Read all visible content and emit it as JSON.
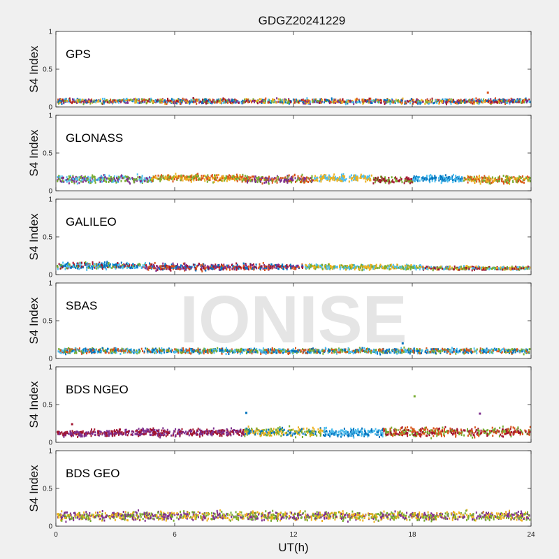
{
  "chart_data": {
    "type": "scatter",
    "title": "GDGZ20241229",
    "xlabel": "UT(h)",
    "ylabel": "S4 Index",
    "xlim": [
      0,
      24
    ],
    "ylim": [
      0,
      1
    ],
    "x_ticks": [
      "0",
      "6",
      "12",
      "18",
      "24"
    ],
    "y_ticks": [
      "0",
      "0.5",
      "1"
    ],
    "grid": false,
    "legend": "none",
    "watermark": "IONISE",
    "series_colors": [
      "#0072BD",
      "#D95319",
      "#EDB120",
      "#7E2F8E",
      "#77AC30",
      "#4DBEEE",
      "#A2142F"
    ],
    "panels": [
      {
        "label": "GPS",
        "segments": [
          {
            "x0": 0,
            "x1": 24,
            "s4_min": 0.03,
            "s4_max": 0.12,
            "colors": [
              "#D95319",
              "#0072BD",
              "#77AC30",
              "#7E2F8E",
              "#4DBEEE",
              "#A2142F",
              "#EDB120"
            ]
          }
        ],
        "outliers": [
          {
            "x": 21.8,
            "s4": 0.19,
            "color": "#D95319"
          }
        ]
      },
      {
        "label": "GLONASS",
        "segments": [
          {
            "x0": 0,
            "x1": 4.8,
            "s4_min": 0.08,
            "s4_max": 0.22,
            "colors": [
              "#77AC30",
              "#4DBEEE",
              "#7E2F8E"
            ]
          },
          {
            "x0": 4.8,
            "x1": 9.5,
            "s4_min": 0.1,
            "s4_max": 0.24,
            "colors": [
              "#EDB120",
              "#D95319",
              "#77AC30"
            ]
          },
          {
            "x0": 9.5,
            "x1": 13,
            "s4_min": 0.08,
            "s4_max": 0.22,
            "colors": [
              "#77AC30",
              "#7E2F8E",
              "#D95319"
            ]
          },
          {
            "x0": 13,
            "x1": 16,
            "s4_min": 0.1,
            "s4_max": 0.24,
            "colors": [
              "#4DBEEE",
              "#EDB120"
            ]
          },
          {
            "x0": 16,
            "x1": 18,
            "s4_min": 0.08,
            "s4_max": 0.2,
            "colors": [
              "#A2142F",
              "#77AC30"
            ]
          },
          {
            "x0": 18,
            "x1": 20.5,
            "s4_min": 0.1,
            "s4_max": 0.22,
            "colors": [
              "#0072BD",
              "#4DBEEE"
            ]
          },
          {
            "x0": 20.5,
            "x1": 24,
            "s4_min": 0.08,
            "s4_max": 0.22,
            "colors": [
              "#D95319",
              "#EDB120",
              "#77AC30"
            ]
          }
        ],
        "outliers": []
      },
      {
        "label": "GALILEO",
        "segments": [
          {
            "x0": 0,
            "x1": 4.5,
            "s4_min": 0.05,
            "s4_max": 0.18,
            "colors": [
              "#0072BD",
              "#4DBEEE",
              "#A2142F",
              "#77AC30"
            ]
          },
          {
            "x0": 4.5,
            "x1": 12.5,
            "s4_min": 0.04,
            "s4_max": 0.16,
            "colors": [
              "#A2142F",
              "#7E2F8E",
              "#0072BD",
              "#D95319"
            ]
          },
          {
            "x0": 12.5,
            "x1": 18.5,
            "s4_min": 0.05,
            "s4_max": 0.15,
            "colors": [
              "#EDB120",
              "#4DBEEE",
              "#77AC30"
            ]
          },
          {
            "x0": 18.5,
            "x1": 24,
            "s4_min": 0.05,
            "s4_max": 0.12,
            "colors": [
              "#77AC30",
              "#A2142F",
              "#4DBEEE",
              "#EDB120"
            ]
          }
        ],
        "outliers": []
      },
      {
        "label": "SBAS",
        "segments": [
          {
            "x0": 0,
            "x1": 24,
            "s4_min": 0.05,
            "s4_max": 0.15,
            "colors": [
              "#4DBEEE",
              "#0072BD",
              "#77AC30",
              "#D95319"
            ]
          }
        ],
        "outliers": [
          {
            "x": 17.5,
            "s4": 0.2,
            "color": "#0072BD"
          }
        ]
      },
      {
        "label": "BDS NGEO",
        "segments": [
          {
            "x0": 0,
            "x1": 3,
            "s4_min": 0.06,
            "s4_max": 0.18,
            "colors": [
              "#A2142F",
              "#7E2F8E"
            ]
          },
          {
            "x0": 3,
            "x1": 9.5,
            "s4_min": 0.06,
            "s4_max": 0.2,
            "colors": [
              "#7E2F8E",
              "#A2142F"
            ]
          },
          {
            "x0": 9.5,
            "x1": 13.5,
            "s4_min": 0.05,
            "s4_max": 0.22,
            "colors": [
              "#EDB120",
              "#77AC30",
              "#0072BD"
            ]
          },
          {
            "x0": 13.5,
            "x1": 16.5,
            "s4_min": 0.05,
            "s4_max": 0.2,
            "colors": [
              "#4DBEEE",
              "#0072BD"
            ]
          },
          {
            "x0": 16.5,
            "x1": 24,
            "s4_min": 0.05,
            "s4_max": 0.22,
            "colors": [
              "#D95319",
              "#77AC30",
              "#A2142F"
            ]
          }
        ],
        "outliers": [
          {
            "x": 0.8,
            "s4": 0.24,
            "color": "#A2142F"
          },
          {
            "x": 9.6,
            "s4": 0.39,
            "color": "#0072BD"
          },
          {
            "x": 18.1,
            "s4": 0.61,
            "color": "#77AC30"
          },
          {
            "x": 21.4,
            "s4": 0.38,
            "color": "#7E2F8E"
          }
        ]
      },
      {
        "label": "BDS GEO",
        "segments": [
          {
            "x0": 0,
            "x1": 24,
            "s4_min": 0.05,
            "s4_max": 0.22,
            "colors": [
              "#7E2F8E",
              "#EDB120",
              "#77AC30"
            ]
          }
        ],
        "outliers": []
      }
    ]
  }
}
